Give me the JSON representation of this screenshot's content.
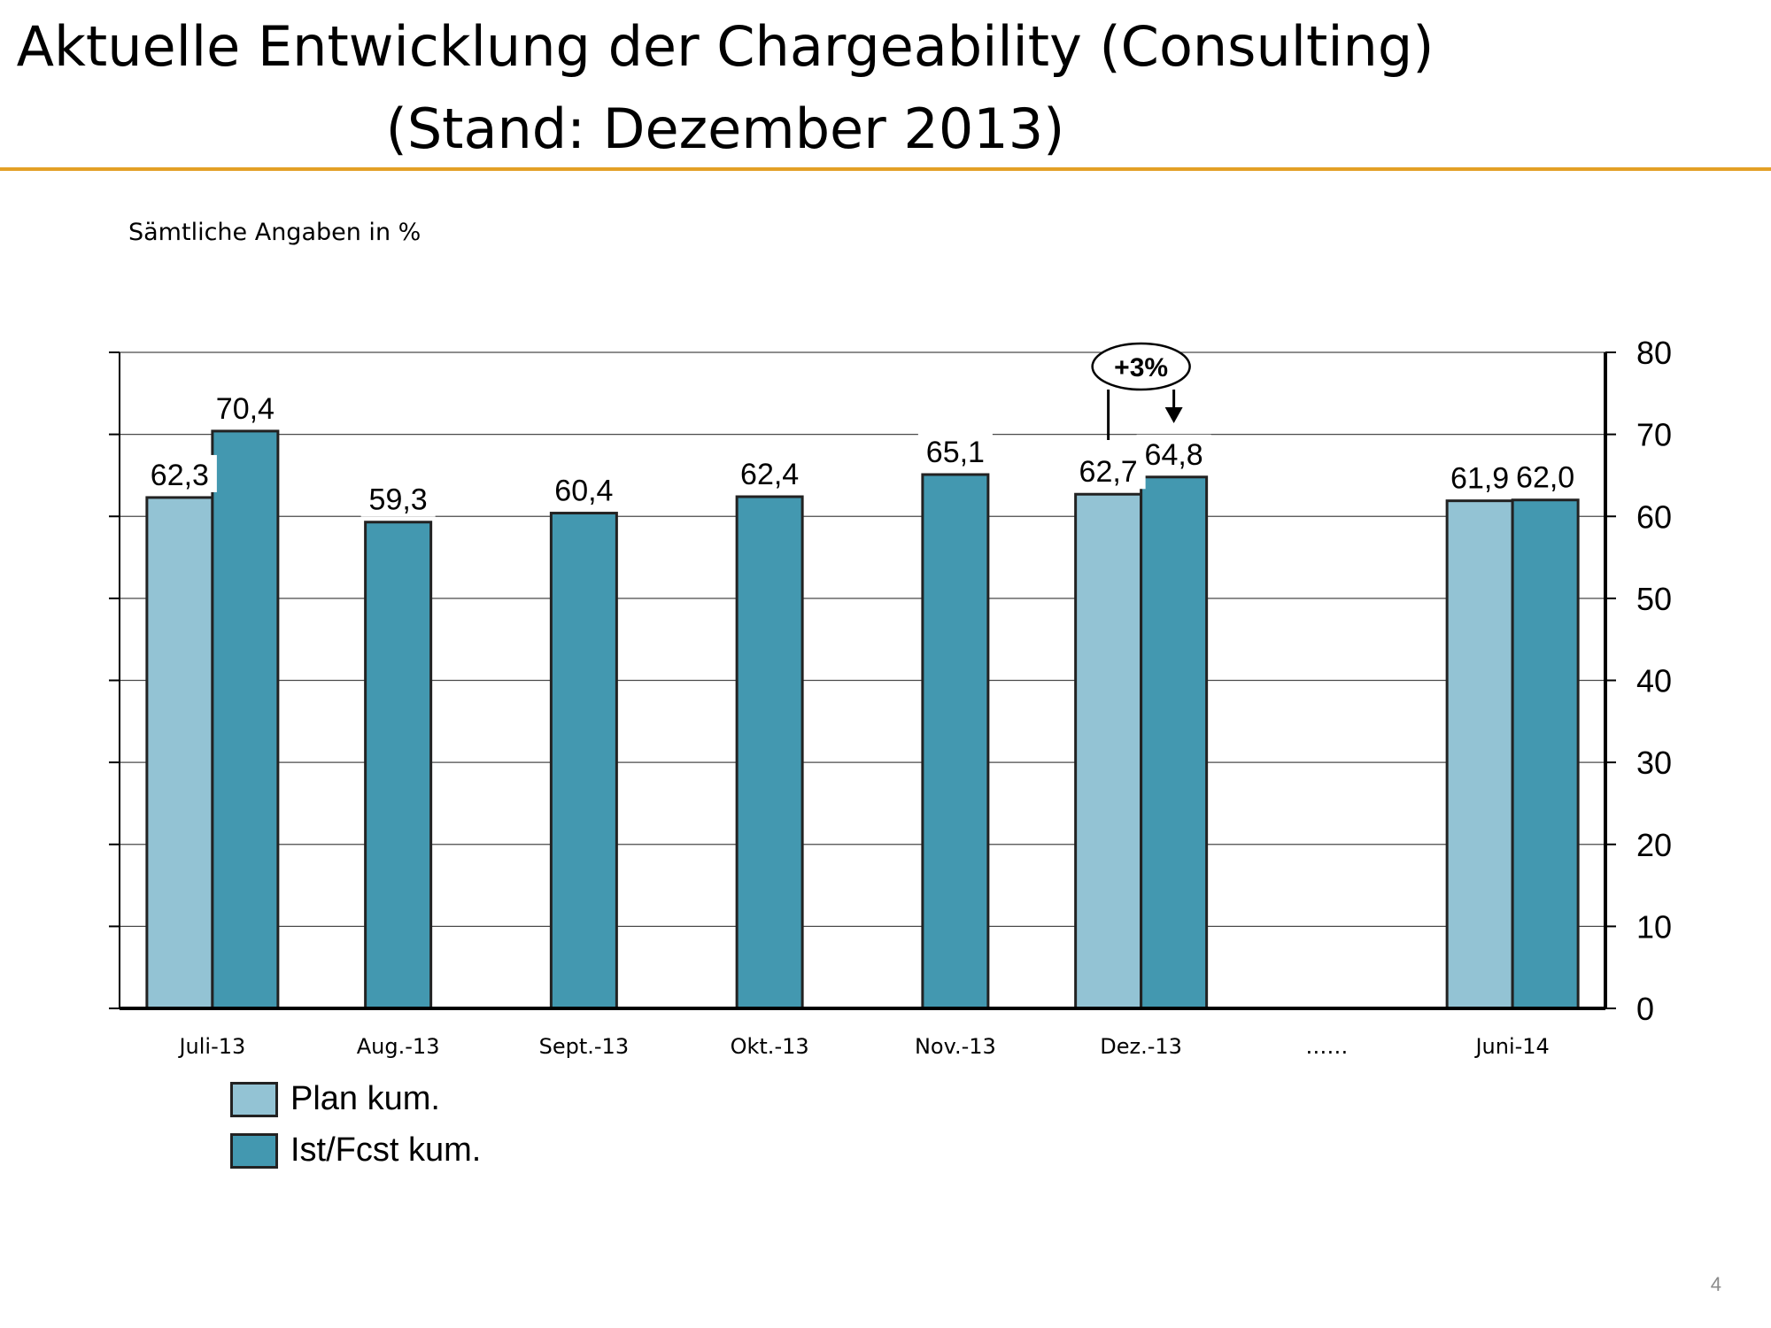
{
  "page": {
    "title_line1": "Aktuelle Entwicklung der Chargeability (Consulting)",
    "title_line2": "(Stand: Dezember 2013)",
    "subtitle": "Sämtliche Angaben in %",
    "page_number": "4",
    "accent_color": "#e3a026"
  },
  "chart_data": {
    "type": "bar",
    "categories": [
      "Juli-13",
      "Aug.-13",
      "Sept.-13",
      "Okt.-13",
      "Nov.-13",
      "Dez.-13",
      "……",
      "Juni-14"
    ],
    "series": [
      {
        "name": "Plan kum.",
        "color": "#93c3d4",
        "values": [
          62.3,
          null,
          null,
          null,
          null,
          62.7,
          null,
          61.9
        ],
        "labels": [
          "62,3",
          "",
          "",
          "",
          "",
          "62,7",
          "",
          "61,9"
        ]
      },
      {
        "name": "Ist/Fcst kum.",
        "color": "#4398b0",
        "values": [
          70.4,
          59.3,
          60.4,
          62.4,
          65.1,
          64.8,
          null,
          62.0
        ],
        "labels": [
          "70,4",
          "59,3",
          "60,4",
          "62,4",
          "65,1",
          "64,8",
          "",
          "62,0"
        ]
      }
    ],
    "ylim": [
      0,
      80
    ],
    "yticks": [
      "0",
      "10",
      "20",
      "30",
      "40",
      "50",
      "60",
      "70",
      "80"
    ],
    "y_axis_side": "right",
    "grid": true,
    "legend_position": "bottom-left",
    "annotation": {
      "text": "+3%",
      "category": "Dez.-13"
    }
  }
}
